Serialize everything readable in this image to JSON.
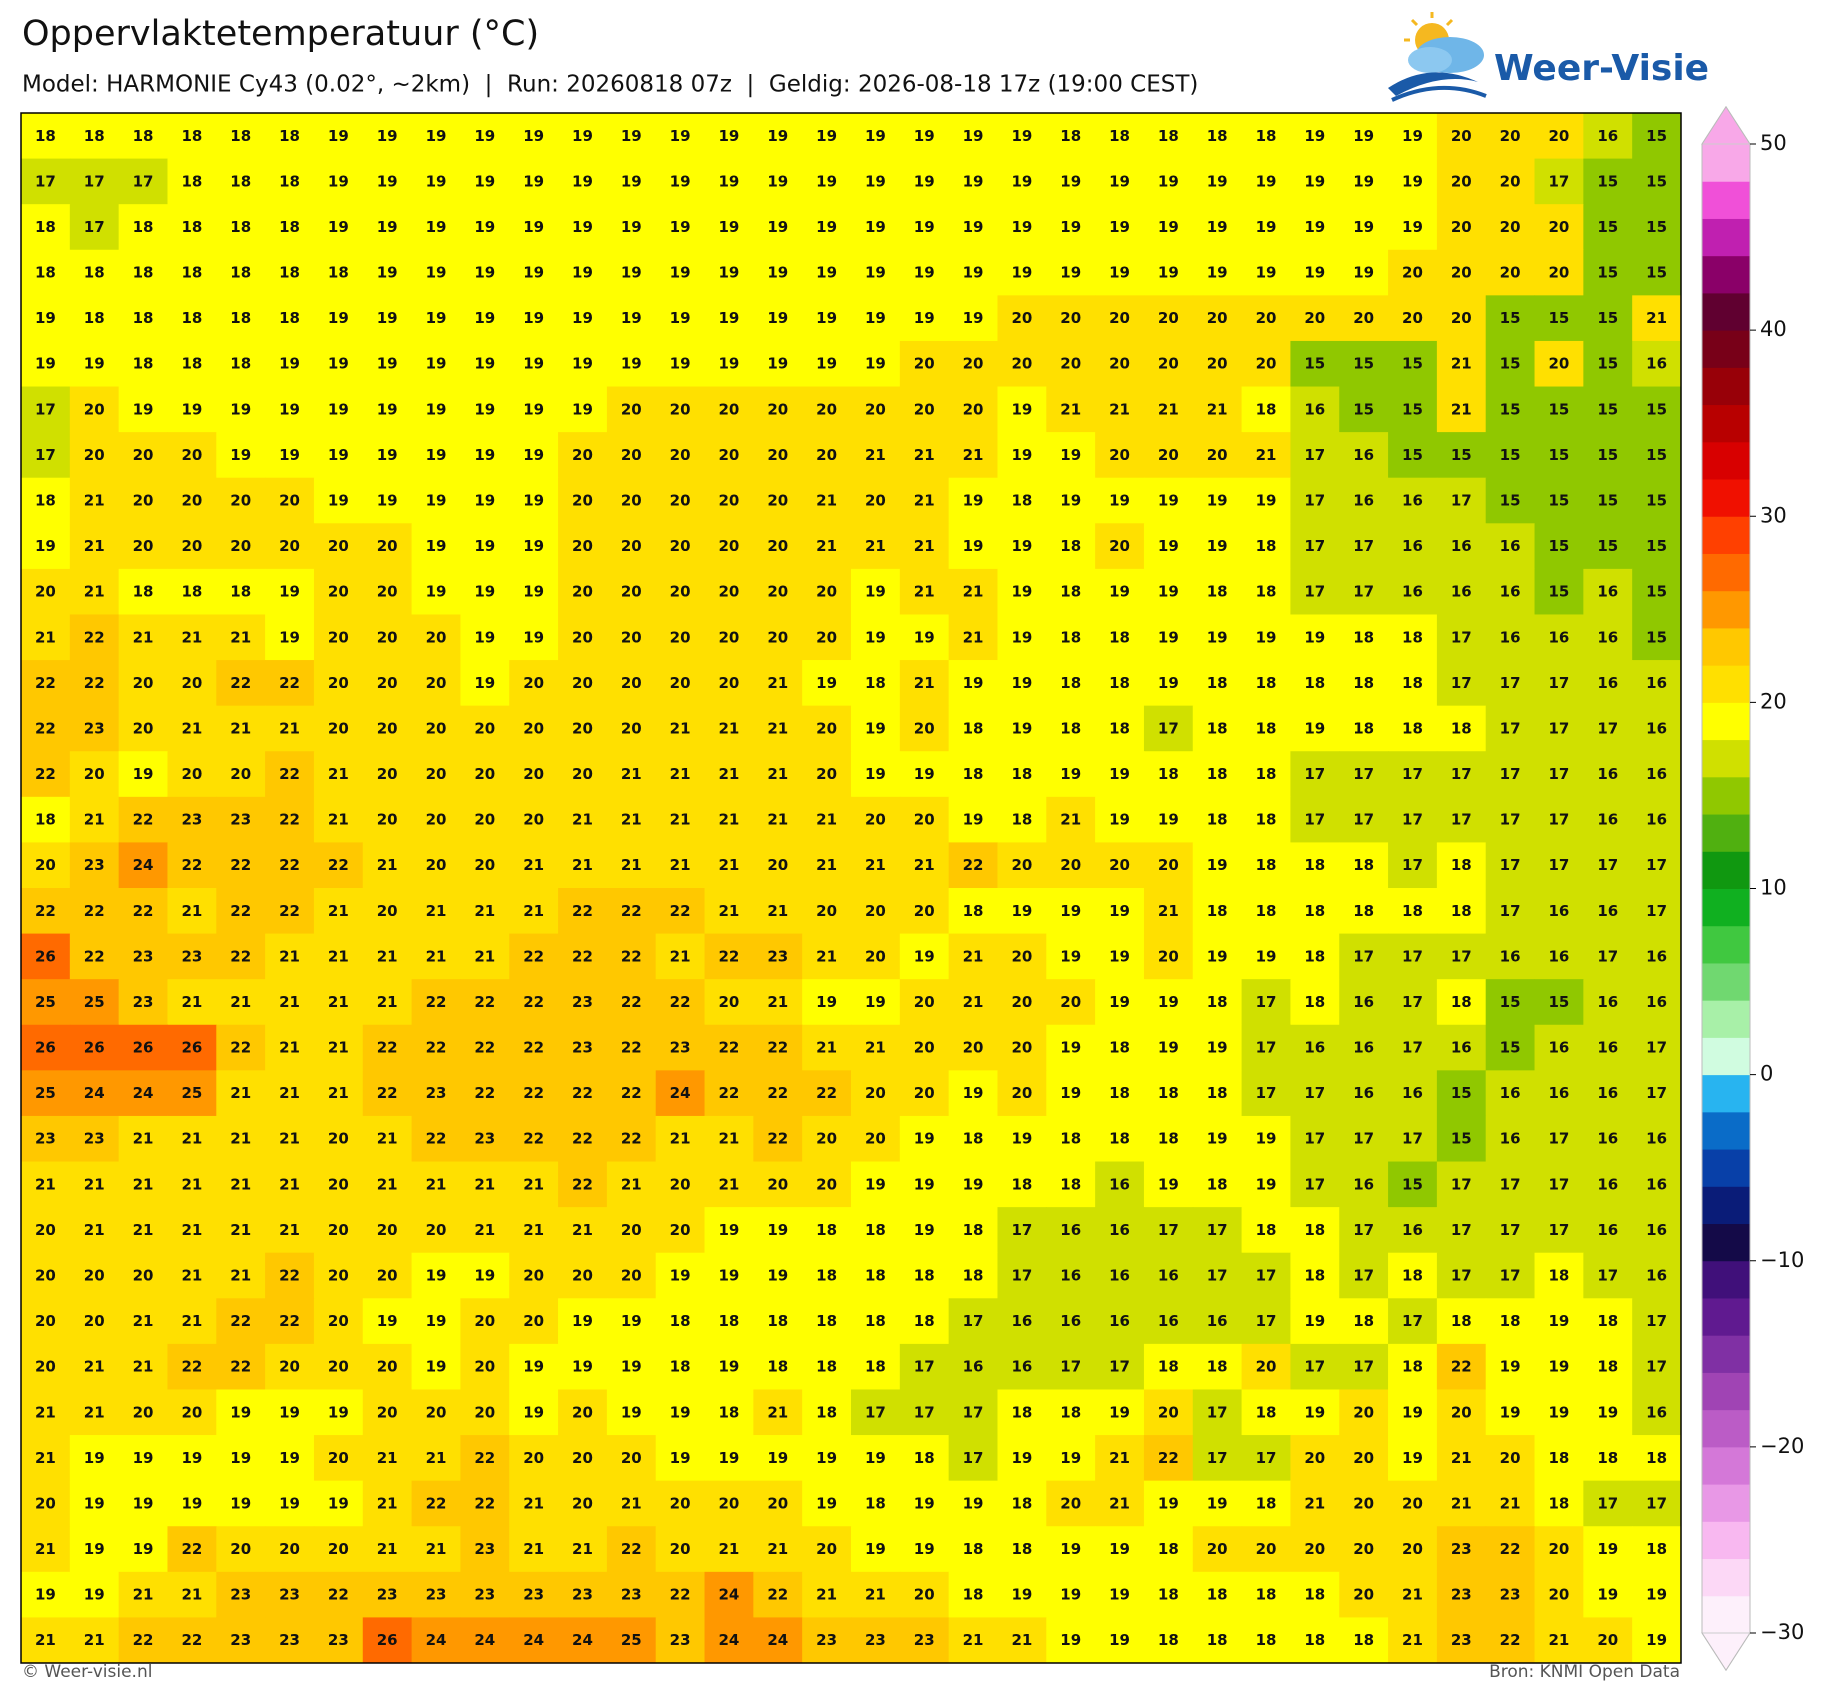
{
  "header": {
    "title": "Oppervlaktetemperatuur (°C)",
    "subtitle": "Model: HARMONIE Cy43 (0.02°, ~2km)  |  Run: 20260818 07z  |  Geldig: 2026-08-18 17z (19:00 CEST)",
    "logo": "Weer-Visie"
  },
  "map": {
    "grid": [
      [
        18,
        18,
        18,
        18,
        18,
        18,
        19,
        19,
        19,
        19,
        19,
        19,
        19,
        19,
        19,
        19,
        19,
        19,
        19,
        19,
        19,
        18,
        18,
        18,
        18,
        18,
        19,
        19,
        19,
        20,
        20,
        20,
        16,
        15
      ],
      [
        17,
        17,
        17,
        18,
        18,
        18,
        19,
        19,
        19,
        19,
        19,
        19,
        19,
        19,
        19,
        19,
        19,
        19,
        19,
        19,
        19,
        19,
        19,
        19,
        19,
        19,
        19,
        19,
        19,
        20,
        20,
        17,
        15,
        15
      ],
      [
        18,
        17,
        18,
        18,
        18,
        18,
        19,
        19,
        19,
        19,
        19,
        19,
        19,
        19,
        19,
        19,
        19,
        19,
        19,
        19,
        19,
        19,
        19,
        19,
        19,
        19,
        19,
        19,
        19,
        20,
        20,
        20,
        15,
        15
      ],
      [
        18,
        18,
        18,
        18,
        18,
        18,
        18,
        19,
        19,
        19,
        19,
        19,
        19,
        19,
        19,
        19,
        19,
        19,
        19,
        19,
        19,
        19,
        19,
        19,
        19,
        19,
        19,
        19,
        20,
        20,
        20,
        20,
        15,
        15
      ],
      [
        19,
        18,
        18,
        18,
        18,
        18,
        19,
        19,
        19,
        19,
        19,
        19,
        19,
        19,
        19,
        19,
        19,
        19,
        19,
        19,
        20,
        20,
        20,
        20,
        20,
        20,
        20,
        20,
        20,
        20,
        15,
        15,
        15,
        21
      ],
      [
        19,
        19,
        18,
        18,
        18,
        19,
        19,
        19,
        19,
        19,
        19,
        19,
        19,
        19,
        19,
        19,
        19,
        19,
        20,
        20,
        20,
        20,
        20,
        20,
        20,
        20,
        15,
        15,
        15,
        21,
        15,
        20,
        15,
        16
      ],
      [
        17,
        20,
        19,
        19,
        19,
        19,
        19,
        19,
        19,
        19,
        19,
        19,
        20,
        20,
        20,
        20,
        20,
        20,
        20,
        20,
        19,
        21,
        21,
        21,
        21,
        18,
        16,
        15,
        15,
        21,
        15,
        15,
        15,
        15
      ],
      [
        17,
        20,
        20,
        20,
        19,
        19,
        19,
        19,
        19,
        19,
        19,
        20,
        20,
        20,
        20,
        20,
        20,
        21,
        21,
        21,
        19,
        19,
        20,
        20,
        20,
        21,
        17,
        16,
        15,
        15,
        15,
        15,
        15,
        15
      ],
      [
        18,
        21,
        20,
        20,
        20,
        20,
        19,
        19,
        19,
        19,
        19,
        20,
        20,
        20,
        20,
        20,
        21,
        20,
        21,
        19,
        18,
        19,
        19,
        19,
        19,
        19,
        17,
        16,
        16,
        17,
        15,
        15,
        15,
        15
      ],
      [
        19,
        21,
        20,
        20,
        20,
        20,
        20,
        20,
        19,
        19,
        19,
        20,
        20,
        20,
        20,
        20,
        21,
        21,
        21,
        19,
        19,
        18,
        20,
        19,
        19,
        18,
        17,
        17,
        16,
        16,
        16,
        15,
        15,
        15
      ],
      [
        20,
        21,
        18,
        18,
        18,
        19,
        20,
        20,
        19,
        19,
        19,
        20,
        20,
        20,
        20,
        20,
        20,
        19,
        21,
        21,
        19,
        18,
        19,
        19,
        18,
        18,
        17,
        17,
        16,
        16,
        16,
        15,
        16,
        15
      ],
      [
        21,
        22,
        21,
        21,
        21,
        19,
        20,
        20,
        20,
        19,
        19,
        20,
        20,
        20,
        20,
        20,
        20,
        19,
        19,
        21,
        19,
        18,
        18,
        19,
        19,
        19,
        19,
        18,
        18,
        17,
        16,
        16,
        16,
        15
      ],
      [
        22,
        22,
        20,
        20,
        22,
        22,
        20,
        20,
        20,
        19,
        20,
        20,
        20,
        20,
        20,
        21,
        19,
        18,
        21,
        19,
        19,
        18,
        18,
        19,
        18,
        18,
        18,
        18,
        18,
        17,
        17,
        17,
        16,
        16
      ],
      [
        22,
        23,
        20,
        21,
        21,
        21,
        20,
        20,
        20,
        20,
        20,
        20,
        20,
        21,
        21,
        21,
        20,
        19,
        20,
        18,
        19,
        18,
        18,
        17,
        18,
        18,
        19,
        18,
        18,
        18,
        17,
        17,
        17,
        16
      ],
      [
        22,
        20,
        19,
        20,
        20,
        22,
        21,
        20,
        20,
        20,
        20,
        20,
        21,
        21,
        21,
        21,
        20,
        19,
        19,
        18,
        18,
        19,
        19,
        18,
        18,
        18,
        17,
        17,
        17,
        17,
        17,
        17,
        16,
        16
      ],
      [
        18,
        21,
        22,
        23,
        23,
        22,
        21,
        20,
        20,
        20,
        20,
        21,
        21,
        21,
        21,
        21,
        21,
        20,
        20,
        19,
        18,
        21,
        19,
        19,
        18,
        18,
        17,
        17,
        17,
        17,
        17,
        17,
        16,
        16
      ],
      [
        20,
        23,
        24,
        22,
        22,
        22,
        22,
        21,
        20,
        20,
        21,
        21,
        21,
        21,
        21,
        20,
        21,
        21,
        21,
        22,
        20,
        20,
        20,
        20,
        19,
        18,
        18,
        18,
        17,
        18,
        17,
        17,
        17,
        17
      ],
      [
        22,
        22,
        22,
        21,
        22,
        22,
        21,
        20,
        21,
        21,
        21,
        22,
        22,
        22,
        21,
        21,
        20,
        20,
        20,
        18,
        19,
        19,
        19,
        21,
        18,
        18,
        18,
        18,
        18,
        18,
        17,
        16,
        16,
        17
      ],
      [
        26,
        22,
        23,
        23,
        22,
        21,
        21,
        21,
        21,
        21,
        22,
        22,
        22,
        21,
        22,
        23,
        21,
        20,
        19,
        21,
        20,
        19,
        19,
        20,
        19,
        19,
        18,
        17,
        17,
        17,
        16,
        16,
        17,
        16
      ],
      [
        25,
        25,
        23,
        21,
        21,
        21,
        21,
        21,
        22,
        22,
        22,
        23,
        22,
        22,
        20,
        21,
        19,
        19,
        20,
        21,
        20,
        20,
        19,
        19,
        18,
        17,
        18,
        16,
        17,
        18,
        15,
        15,
        16,
        16
      ],
      [
        26,
        26,
        26,
        26,
        22,
        21,
        21,
        22,
        22,
        22,
        22,
        23,
        22,
        23,
        22,
        22,
        21,
        21,
        20,
        20,
        20,
        19,
        18,
        19,
        19,
        17,
        16,
        16,
        17,
        16,
        15,
        16,
        16,
        17
      ],
      [
        25,
        24,
        24,
        25,
        21,
        21,
        21,
        22,
        23,
        22,
        22,
        22,
        22,
        24,
        22,
        22,
        22,
        20,
        20,
        19,
        20,
        19,
        18,
        18,
        18,
        17,
        17,
        16,
        16,
        15,
        16,
        16,
        16,
        17
      ],
      [
        23,
        23,
        21,
        21,
        21,
        21,
        20,
        21,
        22,
        23,
        22,
        22,
        22,
        21,
        21,
        22,
        20,
        20,
        19,
        18,
        19,
        18,
        18,
        18,
        19,
        19,
        17,
        17,
        17,
        15,
        16,
        17,
        16,
        16
      ],
      [
        21,
        21,
        21,
        21,
        21,
        21,
        20,
        21,
        21,
        21,
        21,
        22,
        21,
        20,
        21,
        20,
        20,
        19,
        19,
        19,
        18,
        18,
        16,
        19,
        18,
        19,
        17,
        16,
        15,
        17,
        17,
        17,
        16,
        16
      ],
      [
        20,
        21,
        21,
        21,
        21,
        21,
        20,
        20,
        20,
        21,
        21,
        21,
        20,
        20,
        19,
        19,
        18,
        18,
        19,
        18,
        17,
        16,
        16,
        17,
        17,
        18,
        18,
        17,
        16,
        17,
        17,
        17,
        16,
        16
      ],
      [
        20,
        20,
        20,
        21,
        21,
        22,
        20,
        20,
        19,
        19,
        20,
        20,
        20,
        19,
        19,
        19,
        18,
        18,
        18,
        18,
        17,
        16,
        16,
        16,
        17,
        17,
        18,
        17,
        18,
        17,
        17,
        18,
        17,
        16
      ],
      [
        20,
        20,
        21,
        21,
        22,
        22,
        20,
        19,
        19,
        20,
        20,
        19,
        19,
        18,
        18,
        18,
        18,
        18,
        18,
        17,
        16,
        16,
        16,
        16,
        16,
        17,
        19,
        18,
        17,
        18,
        18,
        19,
        18,
        17
      ],
      [
        20,
        21,
        21,
        22,
        22,
        20,
        20,
        20,
        19,
        20,
        19,
        19,
        19,
        18,
        19,
        18,
        18,
        18,
        17,
        16,
        16,
        17,
        17,
        18,
        18,
        20,
        17,
        17,
        18,
        22,
        19,
        19,
        18,
        17
      ],
      [
        21,
        21,
        20,
        20,
        19,
        19,
        19,
        20,
        20,
        20,
        19,
        20,
        19,
        19,
        18,
        21,
        18,
        17,
        17,
        17,
        18,
        18,
        19,
        20,
        17,
        18,
        19,
        20,
        19,
        20,
        19,
        19,
        19,
        16
      ],
      [
        21,
        19,
        19,
        19,
        19,
        19,
        20,
        21,
        21,
        22,
        20,
        20,
        20,
        19,
        19,
        19,
        19,
        19,
        18,
        17,
        19,
        19,
        21,
        22,
        17,
        17,
        20,
        20,
        19,
        21,
        20,
        18,
        18,
        18
      ],
      [
        20,
        19,
        19,
        19,
        19,
        19,
        19,
        21,
        22,
        22,
        21,
        20,
        21,
        20,
        20,
        20,
        19,
        18,
        19,
        19,
        18,
        20,
        21,
        19,
        19,
        18,
        21,
        20,
        20,
        21,
        21,
        18,
        17,
        17
      ],
      [
        21,
        19,
        19,
        22,
        20,
        20,
        20,
        21,
        21,
        23,
        21,
        21,
        22,
        20,
        21,
        21,
        20,
        19,
        19,
        18,
        18,
        19,
        19,
        18,
        20,
        20,
        20,
        20,
        20,
        23,
        22,
        20,
        19,
        18
      ],
      [
        19,
        19,
        21,
        21,
        23,
        23,
        22,
        23,
        23,
        23,
        23,
        23,
        23,
        22,
        24,
        22,
        21,
        21,
        20,
        18,
        19,
        19,
        19,
        18,
        18,
        18,
        18,
        20,
        21,
        23,
        23,
        20,
        19,
        19
      ],
      [
        21,
        21,
        22,
        22,
        23,
        23,
        23,
        26,
        24,
        24,
        24,
        24,
        25,
        23,
        24,
        24,
        23,
        23,
        23,
        21,
        21,
        19,
        19,
        18,
        18,
        18,
        18,
        18,
        21,
        23,
        22,
        21,
        20,
        19
      ]
    ],
    "colorbar": {
      "lim": [
        -30,
        50
      ],
      "ticks": [
        50,
        40,
        30,
        20,
        10,
        0,
        {
          "value": -10,
          "label": "−10"
        },
        {
          "value": -20,
          "label": "−20"
        },
        {
          "value": -30,
          "label": "−30"
        }
      ],
      "colors": [
        "#fdf0fb",
        "#fcd8f6",
        "#f8b8f0",
        "#e898e6",
        "#d478d8",
        "#bb5cc6",
        "#a044b4",
        "#8030a4",
        "#601a90",
        "#40107a",
        "#140a48",
        "#0a1c78",
        "#0840a8",
        "#0a6cc8",
        "#28b4f0",
        "#d0fce0",
        "#a8f0a8",
        "#70d870",
        "#40c840",
        "#10b020",
        "#109810",
        "#50b010",
        "#90c800",
        "#d0e000",
        "#ffff00",
        "#ffe000",
        "#ffc800",
        "#ff9800",
        "#ff6a00",
        "#ff4000",
        "#f01000",
        "#d80000",
        "#b80000",
        "#980008",
        "#780018",
        "#600030",
        "#8a0068",
        "#c020b0",
        "#f050d8",
        "#f8a8e8"
      ]
    }
  },
  "footer": {
    "credit": "© Weer-visie.nl",
    "source": "Bron: KNMI Open Data"
  }
}
